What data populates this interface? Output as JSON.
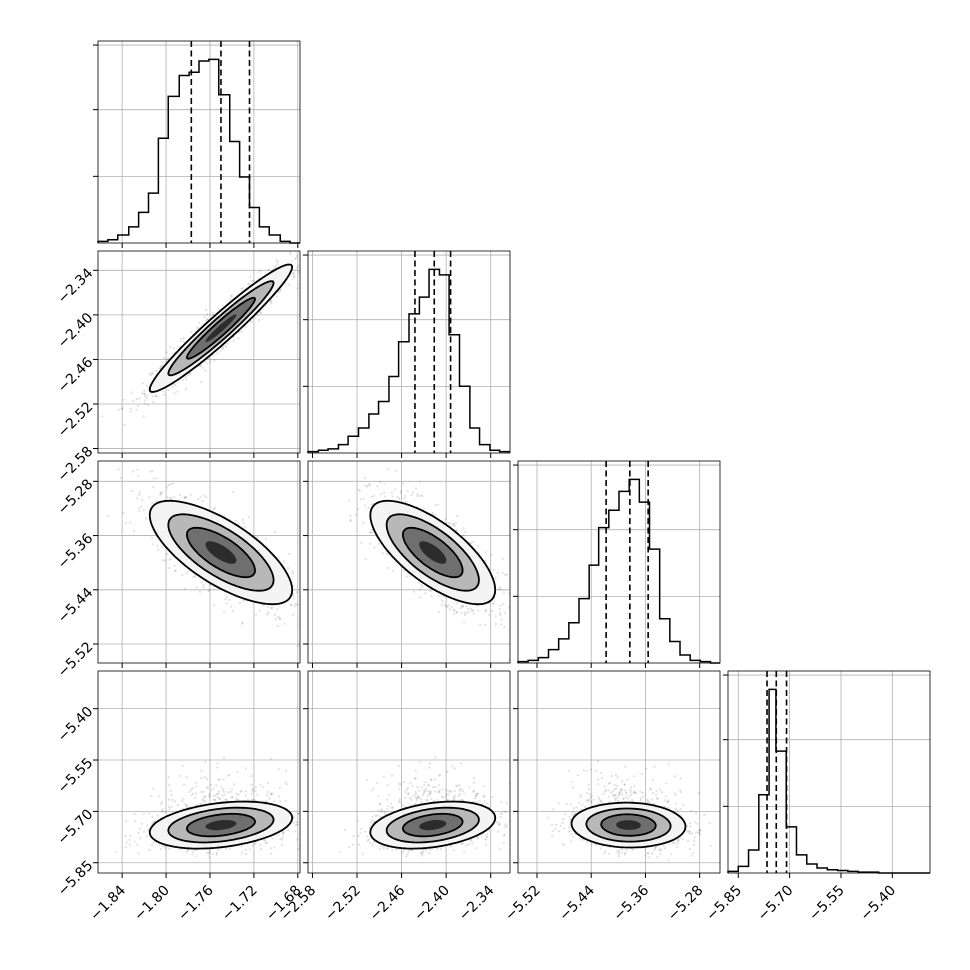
{
  "chart_data": {
    "type": "corner",
    "params": [
      {
        "ticks": [
          -1.84,
          -1.8,
          -1.76,
          -1.72,
          -1.68
        ],
        "tick_labels": [
          "−1.84",
          "−1.80",
          "−1.76",
          "−1.72",
          "−1.68"
        ],
        "range": [
          -1.862,
          -1.678
        ],
        "quantiles": [
          -1.777,
          -1.75,
          -1.724
        ],
        "hist": {
          "edges": [
            -1.862,
            -1.853,
            -1.844,
            -1.834,
            -1.825,
            -1.816,
            -1.807,
            -1.798,
            -1.788,
            -1.779,
            -1.77,
            -1.761,
            -1.752,
            -1.742,
            -1.733,
            -1.724,
            -1.715,
            -1.706,
            -1.696,
            -1.687,
            -1.678
          ],
          "counts": [
            1,
            2,
            5,
            10,
            19,
            31,
            65,
            91,
            104,
            106,
            113,
            114,
            92,
            63,
            41,
            22,
            10,
            5,
            1,
            0
          ]
        }
      },
      {
        "ticks": [
          -2.58,
          -2.52,
          -2.46,
          -2.4,
          -2.34
        ],
        "tick_labels": [
          "−2.58",
          "−2.52",
          "−2.46",
          "−2.40",
          "−2.34"
        ],
        "range": [
          -2.586,
          -2.314
        ],
        "quantiles": [
          -2.442,
          -2.416,
          -2.394
        ],
        "hist": {
          "edges": [
            -2.586,
            -2.572,
            -2.559,
            -2.545,
            -2.532,
            -2.518,
            -2.504,
            -2.491,
            -2.477,
            -2.464,
            -2.45,
            -2.436,
            -2.423,
            -2.409,
            -2.396,
            -2.382,
            -2.368,
            -2.355,
            -2.341,
            -2.328,
            -2.314
          ],
          "counts": [
            1,
            2,
            3,
            6,
            12,
            18,
            28,
            37,
            55,
            80,
            100,
            112,
            132,
            128,
            85,
            48,
            18,
            6,
            2,
            1
          ]
        }
      },
      {
        "ticks": [
          -5.52,
          -5.44,
          -5.36,
          -5.28
        ],
        "tick_labels": [
          "−5.52",
          "−5.44",
          "−5.36",
          "−5.28"
        ],
        "range": [
          -5.548,
          -5.25
        ],
        "quantiles": [
          -5.418,
          -5.383,
          -5.356
        ],
        "hist": {
          "edges": [
            -5.548,
            -5.533,
            -5.518,
            -5.503,
            -5.488,
            -5.473,
            -5.458,
            -5.443,
            -5.429,
            -5.414,
            -5.399,
            -5.384,
            -5.369,
            -5.354,
            -5.339,
            -5.324,
            -5.309,
            -5.294,
            -5.279,
            -5.264,
            -5.25
          ],
          "counts": [
            1,
            2,
            4,
            10,
            18,
            30,
            48,
            73,
            101,
            114,
            128,
            137,
            120,
            85,
            33,
            16,
            6,
            2,
            1,
            0
          ]
        }
      },
      {
        "ticks": [
          -5.85,
          -5.7,
          -5.55,
          -5.4
        ],
        "tick_labels": [
          "−5.85",
          "−5.70",
          "−5.55",
          "−5.40"
        ],
        "range": [
          -5.88,
          -5.29
        ],
        "quantiles": [
          -5.766,
          -5.739,
          -5.709
        ],
        "hist": {
          "edges": [
            -5.88,
            -5.85,
            -5.82,
            -5.79,
            -5.76,
            -5.74,
            -5.71,
            -5.68,
            -5.65,
            -5.62,
            -5.59,
            -5.56,
            -5.53,
            -5.5,
            -5.47,
            -5.44,
            -5.41,
            -5.38,
            -5.35,
            -5.32,
            -5.29
          ],
          "counts": [
            2,
            8,
            28,
            95,
            223,
            148,
            56,
            22,
            11,
            6,
            4,
            3,
            2,
            1,
            1,
            0,
            0,
            0,
            0,
            0
          ]
        }
      }
    ],
    "pairs": [
      {
        "x_param": 0,
        "y_param": 1,
        "mean": [
          -1.75,
          -2.418
        ],
        "sd": [
          0.027,
          0.035
        ],
        "rho": 0.95
      },
      {
        "x_param": 0,
        "y_param": 2,
        "mean": [
          -1.75,
          -5.385
        ],
        "sd": [
          0.027,
          0.035
        ],
        "rho": -0.72
      },
      {
        "x_param": 1,
        "y_param": 2,
        "mean": [
          -2.418,
          -5.385
        ],
        "sd": [
          0.035,
          0.035
        ],
        "rho": -0.72
      },
      {
        "x_param": 0,
        "y_param": 3,
        "mean": [
          -1.75,
          -5.74
        ],
        "sd": [
          0.027,
          0.03
        ],
        "rho": 0.2
      },
      {
        "x_param": 1,
        "y_param": 3,
        "mean": [
          -2.418,
          -5.74
        ],
        "sd": [
          0.035,
          0.03
        ],
        "rho": 0.2
      },
      {
        "x_param": 2,
        "y_param": 3,
        "mean": [
          -5.385,
          -5.74
        ],
        "sd": [
          0.035,
          0.03
        ],
        "rho": -0.15
      }
    ],
    "legend": "none",
    "grid": true
  }
}
